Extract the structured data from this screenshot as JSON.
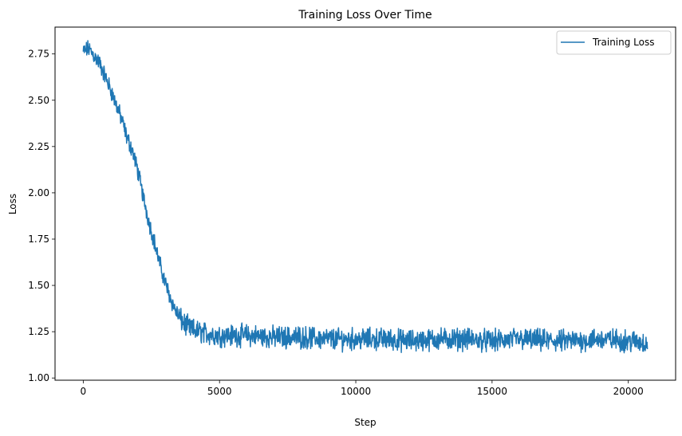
{
  "chart_data": {
    "type": "line",
    "title": "Training Loss Over Time",
    "xlabel": "Step",
    "ylabel": "Loss",
    "xlim": [
      -1035,
      21735
    ],
    "ylim": [
      0.988,
      2.895
    ],
    "xticks": [
      0,
      5000,
      10000,
      15000,
      20000
    ],
    "xtick_labels": [
      "0",
      "5000",
      "10000",
      "15000",
      "20000"
    ],
    "yticks": [
      1.0,
      1.25,
      1.5,
      1.75,
      2.0,
      2.25,
      2.5,
      2.75
    ],
    "ytick_labels": [
      "1.00",
      "1.25",
      "1.50",
      "1.75",
      "2.00",
      "2.25",
      "2.50",
      "2.75"
    ],
    "grid": false,
    "legend": {
      "position": "top-right",
      "entries": [
        "Training Loss"
      ]
    },
    "series": [
      {
        "name": "Training Loss",
        "color": "#1f77b4",
        "x": [
          0,
          200,
          400,
          600,
          800,
          1000,
          1200,
          1400,
          1600,
          1800,
          2000,
          2200,
          2400,
          2600,
          2800,
          3000,
          3200,
          3400,
          3600,
          3800,
          4000,
          4500,
          5000,
          6000,
          7000,
          8000,
          9000,
          10000,
          11000,
          12000,
          13000,
          14000,
          15000,
          16000,
          17000,
          18000,
          19000,
          20000,
          20700
        ],
        "values": [
          2.76,
          2.78,
          2.74,
          2.7,
          2.63,
          2.56,
          2.48,
          2.4,
          2.3,
          2.23,
          2.12,
          1.98,
          1.85,
          1.74,
          1.62,
          1.52,
          1.43,
          1.36,
          1.31,
          1.28,
          1.26,
          1.24,
          1.23,
          1.23,
          1.22,
          1.22,
          1.21,
          1.21,
          1.21,
          1.2,
          1.21,
          1.21,
          1.2,
          1.21,
          1.2,
          1.2,
          1.21,
          1.2,
          1.19
        ]
      }
    ]
  }
}
